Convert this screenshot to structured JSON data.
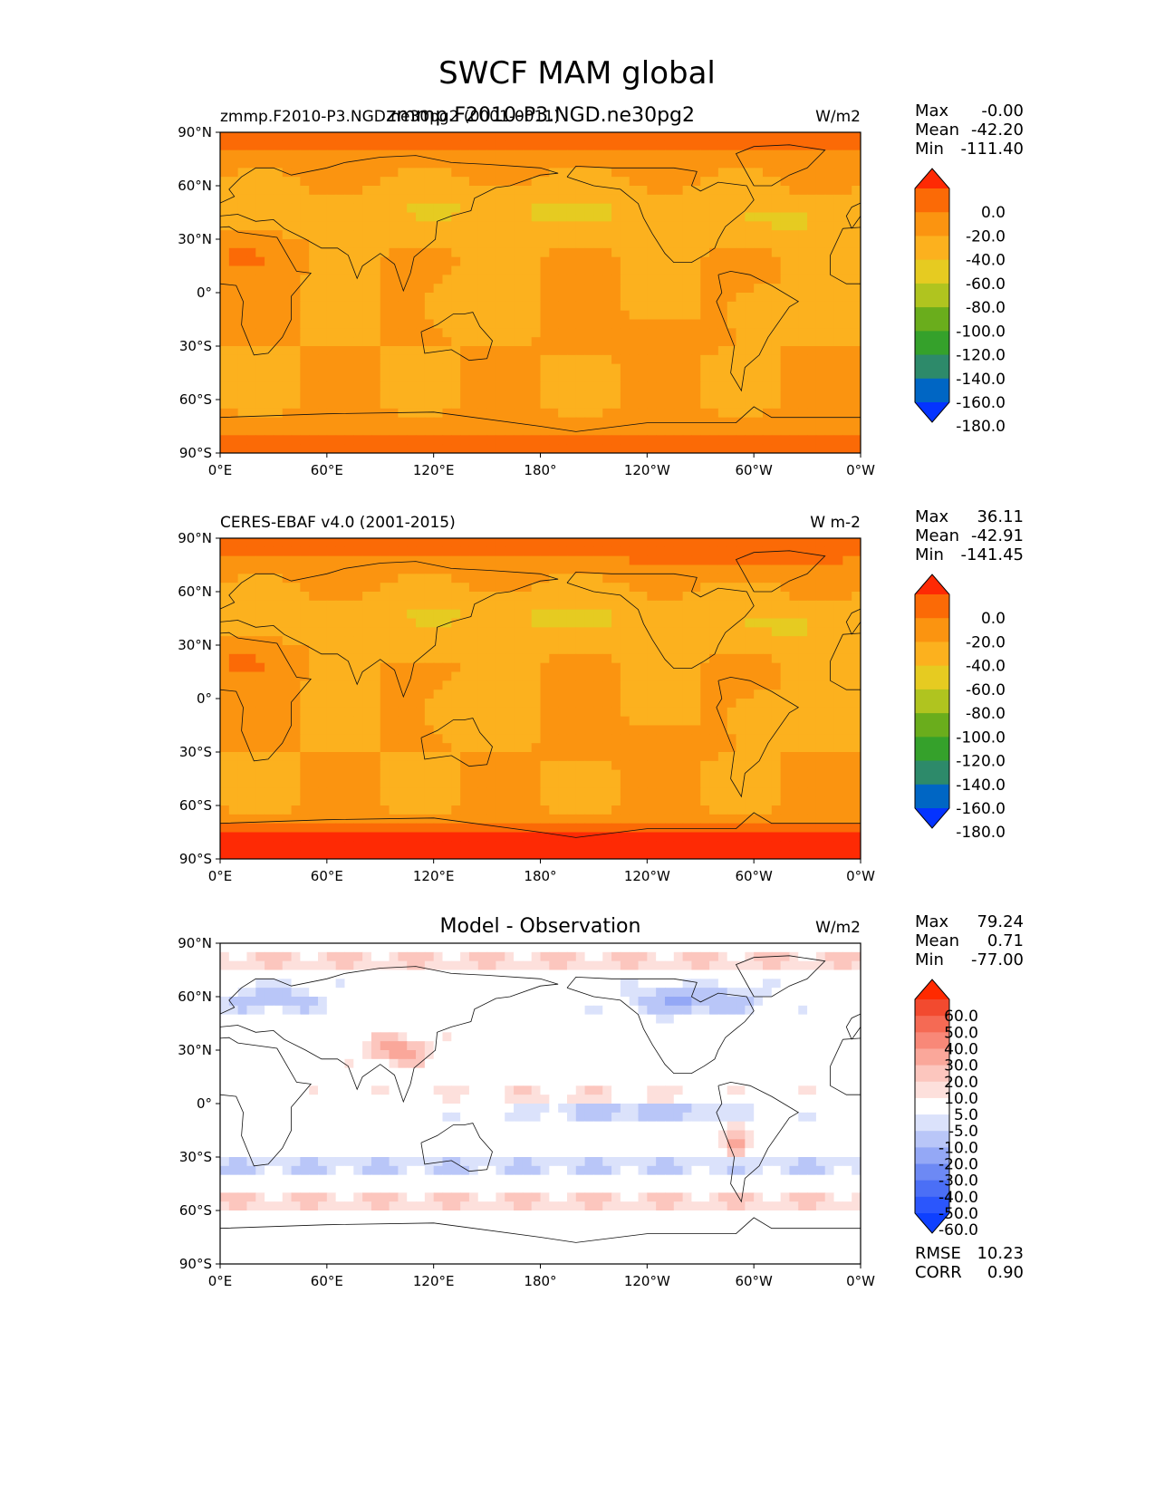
{
  "figure": {
    "title": "SWCF MAM global"
  },
  "common_axes": {
    "xticks": [
      "0°E",
      "60°E",
      "120°E",
      "180°",
      "120°W",
      "60°W",
      "0°W"
    ],
    "yticks": [
      "90°N",
      "60°N",
      "30°N",
      "0°",
      "30°S",
      "60°S",
      "90°S"
    ]
  },
  "colors": {
    "abs_levels": [
      "#0433ff",
      "#0066c4",
      "#2d8a6a",
      "#35a12b",
      "#6aad1c",
      "#b0c41f",
      "#e6cb21",
      "#fcb11e",
      "#fb9410",
      "#fb6a06",
      "#fe2a04"
    ],
    "diff_levels": [
      "#0e40ff",
      "#2b56fc",
      "#4b6ff6",
      "#6d89f4",
      "#94a8f6",
      "#b9c6f8",
      "#dbe2fb",
      "#ffffff",
      "#fde0dc",
      "#fcc6be",
      "#faa79a",
      "#f88878",
      "#f56a54",
      "#f24a2f",
      "#ff2a00"
    ]
  },
  "chart_data": [
    {
      "type": "heatmap",
      "title": "zmmp.F2010-P3.NGD.ne30pg2 (0001-0011)",
      "center_title": "zmmp.F2010-P3.NGD.ne30pg2",
      "units": "W/m2",
      "stats": {
        "Max": "-0.00",
        "Mean": "-42.20",
        "Min": "-111.40"
      },
      "stats_labels": [
        "Max",
        "Mean",
        "Min"
      ],
      "colorbar": {
        "ticks": [
          "0.0",
          "-20.0",
          "-40.0",
          "-60.0",
          "-80.0",
          "-100.0",
          "-120.0",
          "-140.0",
          "-160.0",
          "-180.0"
        ],
        "levels": [
          -180,
          -160,
          -140,
          -120,
          -100,
          -80,
          -60,
          -40,
          -20,
          0
        ],
        "extend": "both"
      },
      "xlim": [
        0,
        360
      ],
      "ylim": [
        -90,
        90
      ]
    },
    {
      "type": "heatmap",
      "title": "CERES-EBAF v4.0 (2001-2015)",
      "center_title": "",
      "units": "W m-2",
      "stats": {
        "Max": "36.11",
        "Mean": "-42.91",
        "Min": "-141.45"
      },
      "stats_labels": [
        "Max",
        "Mean",
        "Min"
      ],
      "colorbar": {
        "ticks": [
          "0.0",
          "-20.0",
          "-40.0",
          "-60.0",
          "-80.0",
          "-100.0",
          "-120.0",
          "-140.0",
          "-160.0",
          "-180.0"
        ],
        "levels": [
          -180,
          -160,
          -140,
          -120,
          -100,
          -80,
          -60,
          -40,
          -20,
          0
        ],
        "extend": "both"
      },
      "xlim": [
        0,
        360
      ],
      "ylim": [
        -90,
        90
      ]
    },
    {
      "type": "heatmap",
      "title": "",
      "center_title": "Model - Observation",
      "units": "W/m2",
      "stats": {
        "Max": "79.24",
        "Mean": "0.71",
        "Min": "-77.00"
      },
      "stats_labels": [
        "Max",
        "Mean",
        "Min"
      ],
      "colorbar": {
        "ticks": [
          "60.0",
          "50.0",
          "40.0",
          "30.0",
          "20.0",
          "10.0",
          "5.0",
          "-5.0",
          "-10.0",
          "-20.0",
          "-30.0",
          "-40.0",
          "-50.0",
          "-60.0"
        ],
        "levels": [
          -60,
          -50,
          -40,
          -30,
          -20,
          -10,
          -5,
          5,
          10,
          20,
          30,
          40,
          50,
          60
        ],
        "extend": "both"
      },
      "metrics": {
        "RMSE": "10.23",
        "CORR": "0.90"
      },
      "xlim": [
        0,
        360
      ],
      "ylim": [
        -90,
        90
      ]
    }
  ]
}
